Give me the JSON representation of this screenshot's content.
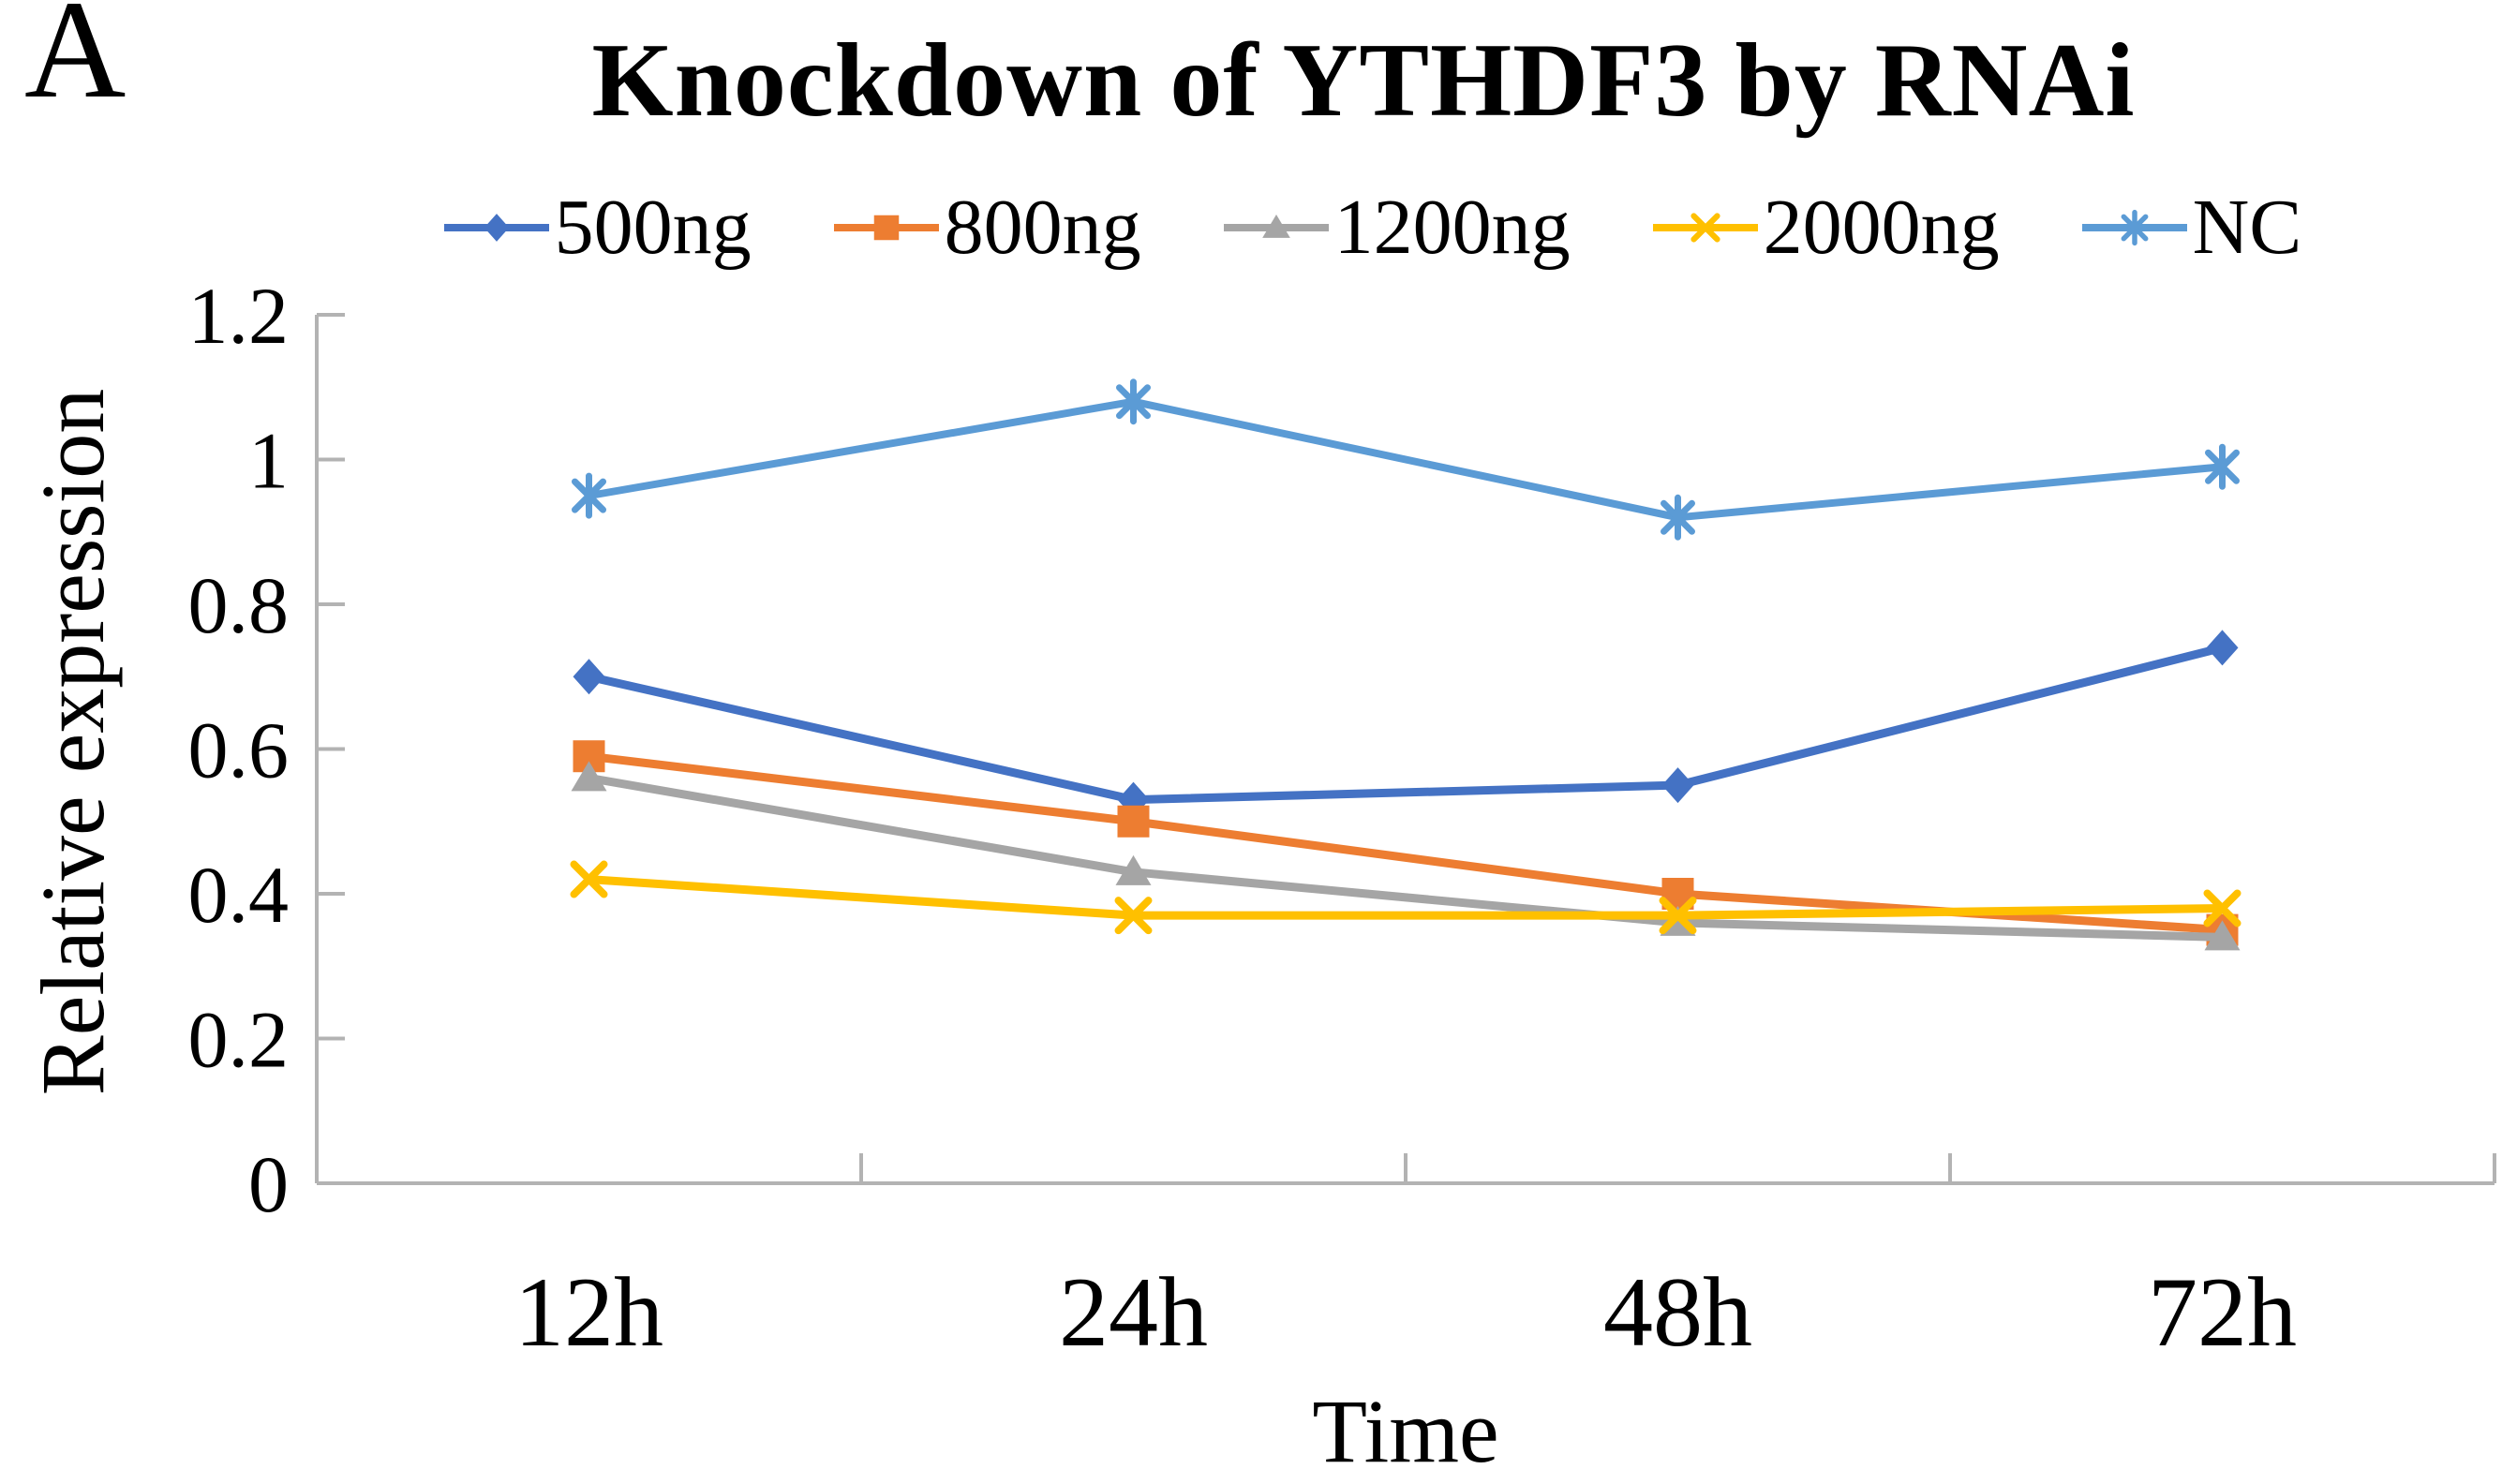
{
  "panel_label": "A",
  "title": "Knockdown of YTHDF3 by RNAi",
  "axes": {
    "y_label": "Relative expression",
    "x_label": "Time",
    "y_tick_labels": [
      "1.2",
      "1",
      "0.8",
      "0.6",
      "0.4",
      "0.2",
      "0"
    ],
    "x_tick_labels": [
      "12h",
      "24h",
      "48h",
      "72h"
    ]
  },
  "colors": {
    "series_500ng": "#4472C4",
    "series_800ng": "#ED7D31",
    "series_1200ng": "#A5A5A5",
    "series_2000ng": "#FFC000",
    "series_nc": "#5B9BD5",
    "axis": "#b3b3b3",
    "text": "#000000",
    "background": "#ffffff"
  },
  "chart_data": {
    "type": "line",
    "title": "Knockdown of YTHDF3 by RNAi",
    "xlabel": "Time",
    "ylabel": "Relative expression",
    "categories": [
      "12h",
      "24h",
      "48h",
      "72h"
    ],
    "ylim": [
      0,
      1.2
    ],
    "y_tick_step": 0.2,
    "grid": false,
    "legend_position": "top",
    "series": [
      {
        "name": "500ng",
        "color": "#4472C4",
        "marker": "diamond",
        "values": [
          0.7,
          0.53,
          0.55,
          0.74
        ]
      },
      {
        "name": "800ng",
        "color": "#ED7D31",
        "marker": "square",
        "values": [
          0.59,
          0.5,
          0.4,
          0.35
        ]
      },
      {
        "name": "1200ng",
        "color": "#A5A5A5",
        "marker": "triangle",
        "values": [
          0.56,
          0.43,
          0.36,
          0.34
        ]
      },
      {
        "name": "2000ng",
        "color": "#FFC000",
        "marker": "x",
        "values": [
          0.42,
          0.37,
          0.37,
          0.38
        ]
      },
      {
        "name": "NC",
        "color": "#5B9BD5",
        "marker": "asterisk",
        "values": [
          0.95,
          1.08,
          0.92,
          0.99
        ]
      }
    ]
  }
}
